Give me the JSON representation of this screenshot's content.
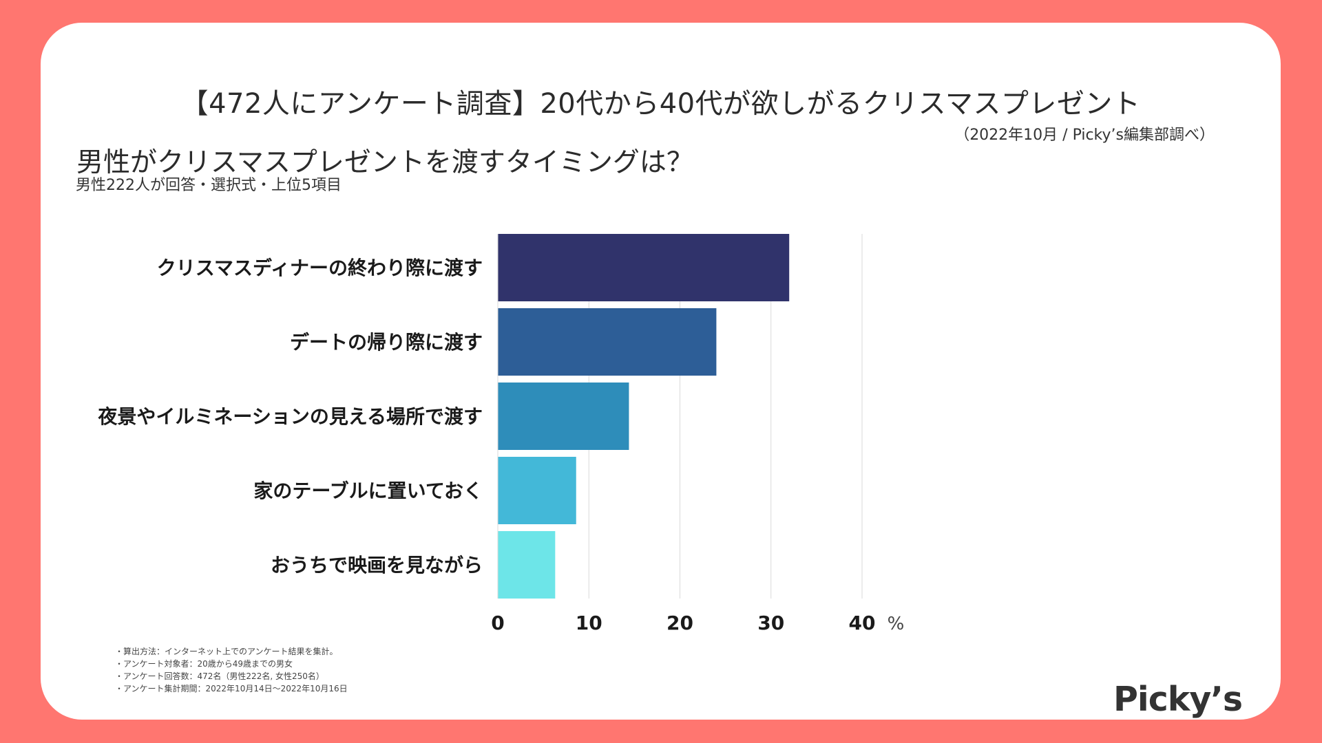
{
  "title": "【472人にアンケート調査】20代から40代が欲しがるクリスマスプレゼント",
  "source": "（2022年10月 / Picky’s編集部調べ）",
  "question": "男性がクリスマスプレゼントを渡すタイミングは？",
  "note": "男性222人が回答・選択式・上位5項目",
  "chart_data": {
    "type": "bar",
    "orientation": "horizontal",
    "categories": [
      "クリスマスディナーの終わり際に渡す",
      "デートの帰り際に渡す",
      "夜景やイルミネーションの見える場所で渡す",
      "家のテーブルに置いておく",
      "おうちで映画を見ながら"
    ],
    "values": [
      32,
      24,
      14.4,
      8.6,
      6.3
    ],
    "colors": [
      "#30336B",
      "#2D5E97",
      "#2E8DBA",
      "#43B8D8",
      "#6DE5E8"
    ],
    "xlim": [
      0,
      40
    ],
    "xticks": [
      0,
      10,
      20,
      30,
      40
    ],
    "xlabel": "%",
    "grid": true
  },
  "footnotes": [
    "・算出方法：インターネット上でのアンケート結果を集計。",
    "・アンケート対象者：20歳から49歳までの男女",
    "・アンケート回答数：472名（男性222名, 女性250名）",
    "・アンケート集計期間：2022年10月14日〜2022年10月16日"
  ],
  "logo": "Picky’s",
  "colors": {
    "background": "#FF7670",
    "card": "#FFFFFF"
  }
}
